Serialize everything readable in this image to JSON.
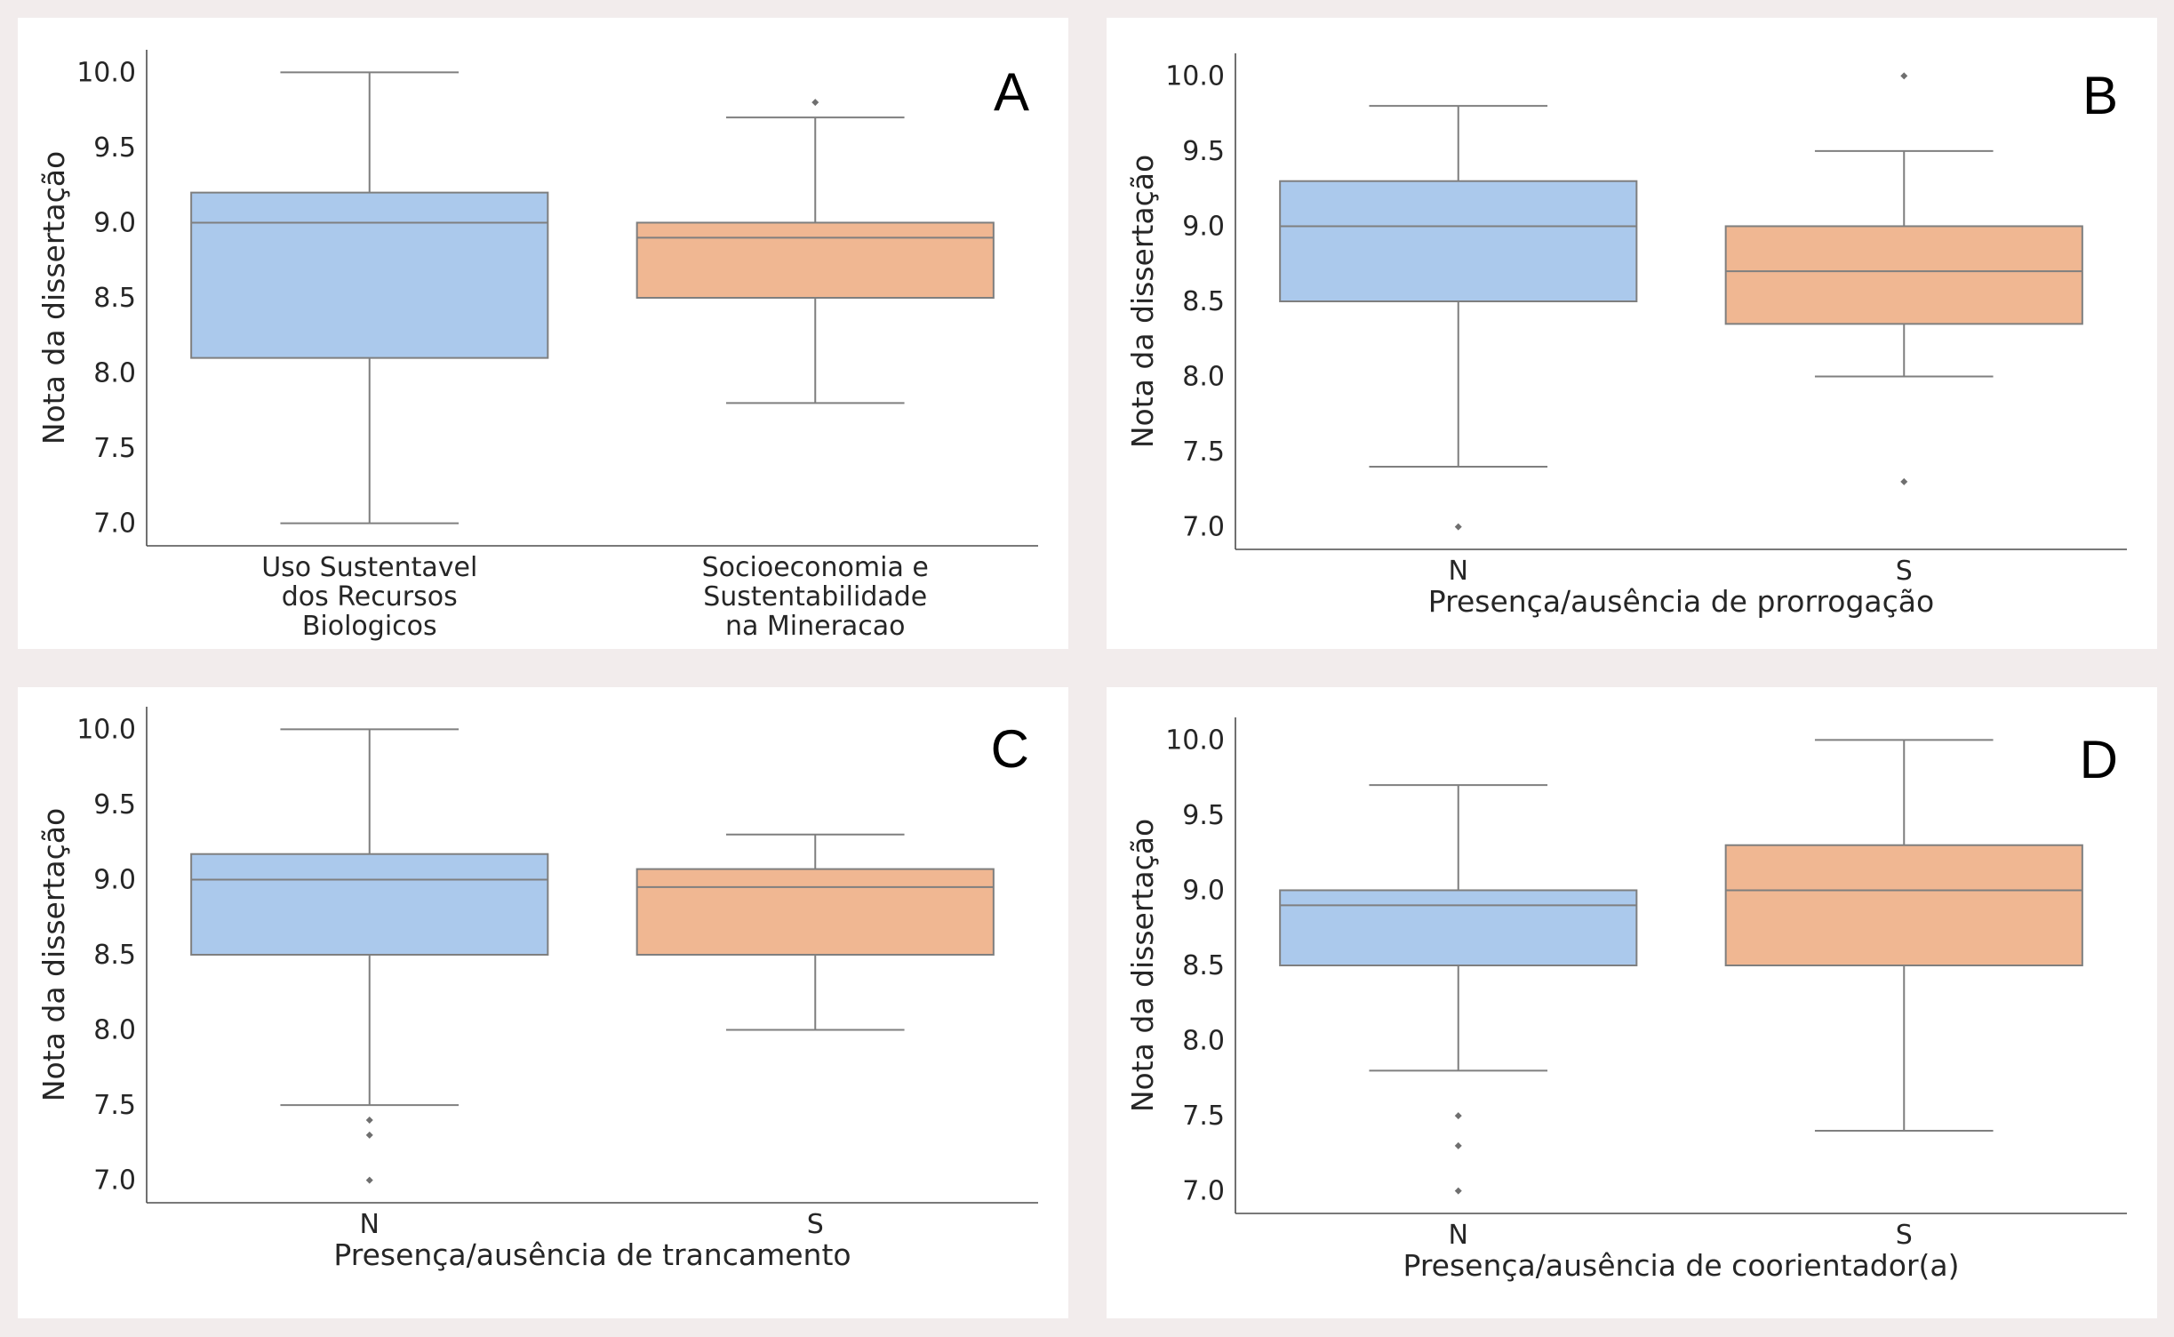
{
  "colors": {
    "series_a": "#abc9ec",
    "series_b": "#f0b792",
    "line": "#7f7f7f",
    "axis": "#4d4d4d",
    "outlier": "#6f6f6f"
  },
  "chart_data": [
    {
      "type": "box",
      "panel_label": "A",
      "xlabel": "",
      "ylabel": "Nota da dissertação",
      "ylim": [
        6.85,
        10.15
      ],
      "yticks": [
        "7.0",
        "7.5",
        "8.0",
        "8.5",
        "9.0",
        "9.5",
        "10.0"
      ],
      "categories": [
        [
          "Uso Sustentavel",
          "dos Recursos",
          "Biologicos"
        ],
        [
          "Socioeconomia e",
          "Sustentabilidade",
          "na Mineracao"
        ]
      ],
      "boxes": [
        {
          "whisker_low": 7.0,
          "q1": 8.1,
          "median": 9.0,
          "q3": 9.2,
          "whisker_high": 10.0,
          "outliers": []
        },
        {
          "whisker_low": 7.8,
          "q1": 8.5,
          "median": 8.9,
          "q3": 9.0,
          "whisker_high": 9.7,
          "outliers": [
            9.8
          ]
        }
      ]
    },
    {
      "type": "box",
      "panel_label": "B",
      "xlabel": "Presença/ausência de prorrogação",
      "ylabel": "Nota da dissertação",
      "ylim": [
        6.85,
        10.15
      ],
      "yticks": [
        "7.0",
        "7.5",
        "8.0",
        "8.5",
        "9.0",
        "9.5",
        "10.0"
      ],
      "categories": [
        [
          "N"
        ],
        [
          "S"
        ]
      ],
      "boxes": [
        {
          "whisker_low": 7.4,
          "q1": 8.5,
          "median": 9.0,
          "q3": 9.3,
          "whisker_high": 9.8,
          "outliers": [
            7.0
          ]
        },
        {
          "whisker_low": 8.0,
          "q1": 8.35,
          "median": 8.7,
          "q3": 9.0,
          "whisker_high": 9.5,
          "outliers": [
            7.3,
            10.0
          ]
        }
      ]
    },
    {
      "type": "box",
      "panel_label": "C",
      "xlabel": "Presença/ausência de trancamento",
      "ylabel": "Nota da dissertação",
      "ylim": [
        6.85,
        10.15
      ],
      "yticks": [
        "7.0",
        "7.5",
        "8.0",
        "8.5",
        "9.0",
        "9.5",
        "10.0"
      ],
      "categories": [
        [
          "N"
        ],
        [
          "S"
        ]
      ],
      "boxes": [
        {
          "whisker_low": 7.5,
          "q1": 8.5,
          "median": 9.0,
          "q3": 9.17,
          "whisker_high": 10.0,
          "outliers": [
            7.4,
            7.3,
            7.0
          ]
        },
        {
          "whisker_low": 8.0,
          "q1": 8.5,
          "median": 8.95,
          "q3": 9.07,
          "whisker_high": 9.3,
          "outliers": []
        }
      ]
    },
    {
      "type": "box",
      "panel_label": "D",
      "xlabel": "Presença/ausência de coorientador(a)",
      "ylabel": "Nota da dissertação",
      "ylim": [
        6.85,
        10.15
      ],
      "yticks": [
        "7.0",
        "7.5",
        "8.0",
        "8.5",
        "9.0",
        "9.5",
        "10.0"
      ],
      "categories": [
        [
          "N"
        ],
        [
          "S"
        ]
      ],
      "boxes": [
        {
          "whisker_low": 7.8,
          "q1": 8.5,
          "median": 8.9,
          "q3": 9.0,
          "whisker_high": 9.7,
          "outliers": [
            7.5,
            7.3,
            7.0
          ]
        },
        {
          "whisker_low": 7.4,
          "q1": 8.5,
          "median": 9.0,
          "q3": 9.3,
          "whisker_high": 10.0,
          "outliers": []
        }
      ]
    }
  ]
}
